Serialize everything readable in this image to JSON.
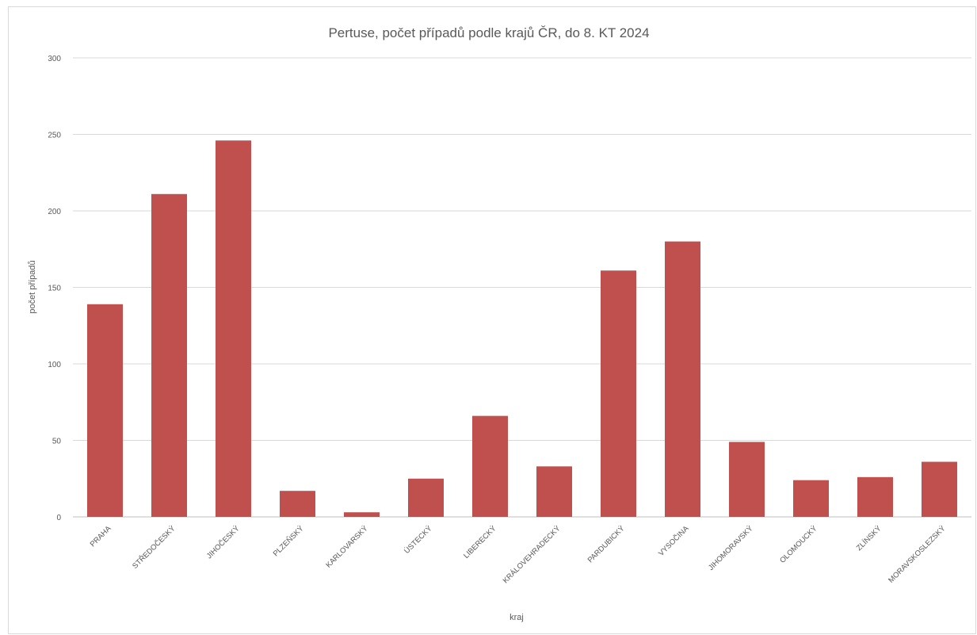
{
  "chart_data": {
    "type": "bar",
    "title": "Pertuse, počet případů podle krajů ČR, do 8. KT 2024",
    "xlabel": "kraj",
    "ylabel": "počet případů",
    "ylim": [
      0,
      300
    ],
    "yticks": [
      0,
      50,
      100,
      150,
      200,
      250,
      300
    ],
    "grid": true,
    "bar_color": "#c0504d",
    "categories": [
      "PRAHA",
      "STŘEDOČESKÝ",
      "JIHOČESKÝ",
      "PLZEŇSKÝ",
      "KARLOVARSKÝ",
      "ÚSTECKÝ",
      "LIBERECKÝ",
      "KRÁLOVEHRADECKÝ",
      "PARDUBICKÝ",
      "VYSOČINA",
      "JIHOMORAVSKÝ",
      "OLOMOUCKÝ",
      "ZLÍNSKÝ",
      "MORAVSKOSLEZSKÝ"
    ],
    "values": [
      139,
      211,
      246,
      17,
      3,
      25,
      66,
      33,
      161,
      180,
      49,
      24,
      26,
      36
    ]
  }
}
